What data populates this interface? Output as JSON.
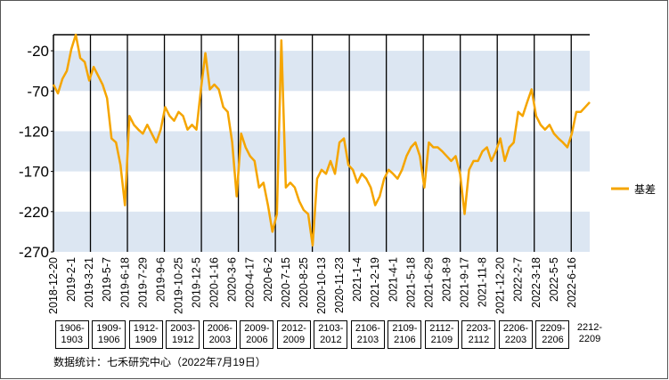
{
  "chart_data": {
    "type": "line",
    "categories": [
      "2018-12-20",
      null,
      null,
      null,
      "2019-2-1",
      null,
      null,
      null,
      "2019-3-21",
      null,
      null,
      null,
      "2019-5-7",
      null,
      null,
      null,
      "2019-6-18",
      null,
      null,
      null,
      "2019-7-29",
      null,
      null,
      null,
      "2019-9-6",
      null,
      null,
      null,
      "2019-10-25",
      null,
      null,
      null,
      "2019-12-5",
      null,
      null,
      null,
      "2020-1-16",
      null,
      null,
      null,
      "2020-3-6",
      null,
      null,
      null,
      "2020-4-17",
      null,
      null,
      null,
      "2020-6-2",
      null,
      null,
      null,
      "2020-7-15",
      null,
      null,
      null,
      "2020-8-25",
      null,
      null,
      null,
      "2020-10-13",
      null,
      null,
      null,
      "2020-11-23",
      null,
      null,
      null,
      "2021-1-4",
      null,
      null,
      null,
      "2021-2-19",
      null,
      null,
      null,
      "2021-4-1",
      null,
      null,
      null,
      "2021-5-18",
      null,
      null,
      null,
      "2021-6-29",
      null,
      null,
      null,
      "2021-8-9",
      null,
      null,
      null,
      "2021-9-17",
      null,
      null,
      null,
      "2021-11-8",
      null,
      null,
      null,
      "2021-12-20",
      null,
      null,
      null,
      "2022-2-7",
      null,
      null,
      null,
      "2022-3-18",
      null,
      null,
      null,
      "2022-5-5",
      null,
      null,
      null,
      "2022-6-16",
      null,
      null,
      null,
      null
    ],
    "series": [
      {
        "name": "基差",
        "color": "#f5a500",
        "values": [
          -62,
          -73,
          -55,
          -45,
          -18,
          0,
          -29,
          -34,
          -57,
          -40,
          -51,
          -62,
          -79,
          -129,
          -134,
          -162,
          -212,
          -101,
          -112,
          -118,
          -123,
          -112,
          -123,
          -134,
          -118,
          -90,
          -101,
          -107,
          -96,
          -101,
          -118,
          -112,
          -118,
          -68,
          -23,
          -68,
          -62,
          -68,
          -90,
          -96,
          -134,
          -201,
          -123,
          -140,
          -151,
          -157,
          -190,
          -184,
          -212,
          -245,
          -223,
          -7,
          -190,
          -184,
          -190,
          -207,
          -218,
          -223,
          -262,
          -179,
          -168,
          -173,
          -157,
          -173,
          -134,
          -129,
          -162,
          -168,
          -184,
          -173,
          -179,
          -190,
          -212,
          -201,
          -179,
          -168,
          -173,
          -179,
          -168,
          -151,
          -140,
          -134,
          -151,
          -190,
          -134,
          -140,
          -140,
          -145,
          -151,
          -157,
          -151,
          -173,
          -223,
          -168,
          -157,
          -157,
          -145,
          -140,
          -157,
          -145,
          -129,
          -157,
          -140,
          -134,
          -96,
          -101,
          -84,
          -68,
          -101,
          -112,
          -118,
          -112,
          -123,
          -129,
          -134,
          -140,
          -123,
          -96,
          -96,
          -90,
          -84
        ]
      }
    ],
    "ylim": [
      -270,
      0
    ],
    "yticks": [
      -20,
      -70,
      -120,
      -170,
      -220,
      -270
    ],
    "bands": true,
    "legend": "right",
    "segments": [
      "1906-1903",
      "1909-1906",
      "1912-1909",
      "2003-1912",
      "2006-2003",
      "2009-2006",
      "2012-2009",
      "2103-2012",
      "2106-2103",
      "2109-2106",
      "2112-2109",
      "2203-2112",
      "2206-2203",
      "2209-2206",
      "2212-2209"
    ],
    "source": "数据统计：七禾研究中心（2022年7月19日）"
  }
}
